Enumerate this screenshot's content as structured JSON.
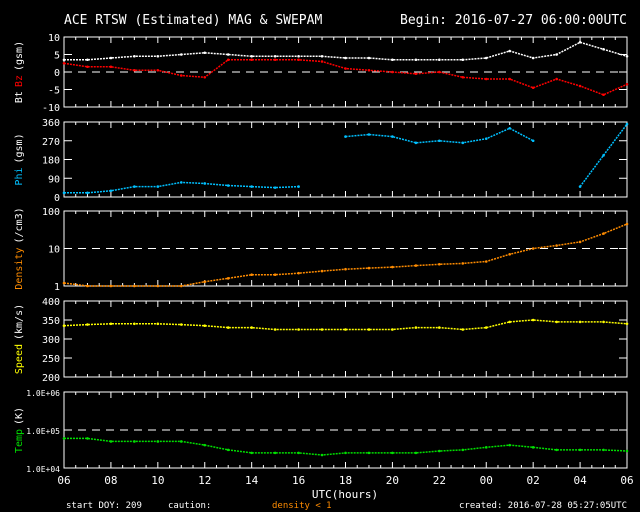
{
  "header": {
    "title": "ACE RTSW (Estimated) MAG & SWEPAM",
    "begin": "Begin: 2016-07-27 06:00:00UTC"
  },
  "footer": {
    "start_doy": "start DOY: 209",
    "caution": "caution:",
    "density_note": "density < 1",
    "created": "created: 2016-07-28 05:27:05UTC",
    "xlabel": "UTC(hours)"
  },
  "colors": {
    "bt": "#ffffff",
    "bz": "#ff0000",
    "phi": "#00c0ff",
    "density": "#ff8c00",
    "speed": "#ffff00",
    "temp": "#00e000",
    "axis": "#ffffff"
  },
  "chart_data": {
    "type": "scatter",
    "x_hours_from_start": [
      0,
      1,
      2,
      3,
      4,
      5,
      6,
      7,
      8,
      9,
      10,
      11,
      12,
      13,
      14,
      15,
      16,
      17,
      18,
      19,
      20,
      21,
      22,
      23,
      24
    ],
    "x_ticks": [
      "06",
      "08",
      "10",
      "12",
      "14",
      "16",
      "18",
      "20",
      "22",
      "00",
      "02",
      "04",
      "06"
    ],
    "xlabel": "UTC(hours)",
    "panels": [
      {
        "name": "mag",
        "ylabel_parts": [
          "Bt",
          "Bz",
          "(gsm)"
        ],
        "ylim": [
          -10,
          10
        ],
        "scale": "linear",
        "ticks": [
          10,
          5,
          0,
          -5,
          -10
        ],
        "tick_labels": [
          "10",
          "5",
          "0",
          "-5",
          "-10"
        ],
        "dashed": [
          0
        ],
        "series": [
          {
            "name": "Bt",
            "color": "#ffffff",
            "values": [
              3.5,
              3.5,
              4,
              4.5,
              4.5,
              5,
              5.5,
              5,
              4.5,
              4.5,
              4.5,
              4.5,
              4,
              4,
              3.5,
              3.5,
              3.5,
              3.5,
              4,
              6,
              4,
              5,
              8.5,
              6.5,
              4.5
            ]
          },
          {
            "name": "Bz",
            "color": "#ff0000",
            "values": [
              2.5,
              1.5,
              1.5,
              0.5,
              0.5,
              -1,
              -1.5,
              3.5,
              3.5,
              3.5,
              3.5,
              3,
              1,
              0.5,
              0,
              -0.5,
              0,
              -1.5,
              -2,
              -2,
              -4.5,
              -2,
              -4,
              -6.5,
              -3.5
            ]
          }
        ]
      },
      {
        "name": "phi",
        "ylabel_parts": [
          "Phi",
          "(gsm)"
        ],
        "ylim": [
          0,
          360
        ],
        "scale": "linear",
        "ticks": [
          360,
          270,
          180,
          90,
          0
        ],
        "tick_labels": [
          "360",
          "270",
          "180",
          "90",
          "0"
        ],
        "dashed": [],
        "series": [
          {
            "name": "Phi",
            "color": "#00c0ff",
            "values": [
              20,
              20,
              30,
              50,
              50,
              70,
              65,
              55,
              50,
              45,
              50,
              null,
              290,
              300,
              290,
              260,
              270,
              260,
              280,
              330,
              270,
              null,
              50,
              200,
              350
            ]
          }
        ]
      },
      {
        "name": "density",
        "ylabel_parts": [
          "Density",
          "(/cm3)"
        ],
        "ylim": [
          1,
          100
        ],
        "scale": "log",
        "ticks": [
          100,
          10,
          1
        ],
        "tick_labels": [
          "100",
          "10",
          "1"
        ],
        "dashed": [
          10
        ],
        "series": [
          {
            "name": "Density",
            "color": "#ff8c00",
            "values": [
              1.2,
              1,
              0.9,
              0.9,
              0.8,
              0.8,
              1.3,
              1.6,
              2,
              2,
              2.2,
              2.5,
              2.8,
              3,
              3.2,
              3.5,
              3.8,
              4,
              4.5,
              7,
              10,
              12,
              15,
              25,
              45
            ]
          }
        ]
      },
      {
        "name": "speed",
        "ylabel_parts": [
          "Speed",
          "(km/s)"
        ],
        "ylim": [
          200,
          400
        ],
        "scale": "linear",
        "ticks": [
          400,
          350,
          300,
          250,
          200
        ],
        "tick_labels": [
          "400",
          "350",
          "300",
          "250",
          "200"
        ],
        "dashed": [],
        "series": [
          {
            "name": "Speed",
            "color": "#ffff00",
            "values": [
              335,
              338,
              340,
              340,
              340,
              338,
              335,
              330,
              330,
              325,
              325,
              325,
              325,
              325,
              325,
              330,
              330,
              325,
              330,
              345,
              350,
              345,
              345,
              345,
              340
            ]
          }
        ]
      },
      {
        "name": "temp",
        "ylabel_parts": [
          "Temp",
          "(K)"
        ],
        "ylim": [
          10000,
          1000000
        ],
        "scale": "log",
        "ticks": [
          1000000,
          100000,
          10000
        ],
        "tick_labels": [
          "1.0E+06",
          "1.0E+05",
          "1.0E+04"
        ],
        "dashed": [
          100000
        ],
        "series": [
          {
            "name": "Temp",
            "color": "#00e000",
            "values": [
              60000,
              60000,
              50000,
              50000,
              50000,
              50000,
              40000,
              30000,
              25000,
              25000,
              25000,
              22000,
              25000,
              25000,
              25000,
              25000,
              28000,
              30000,
              35000,
              40000,
              35000,
              30000,
              30000,
              30000,
              28000
            ]
          }
        ]
      }
    ]
  }
}
